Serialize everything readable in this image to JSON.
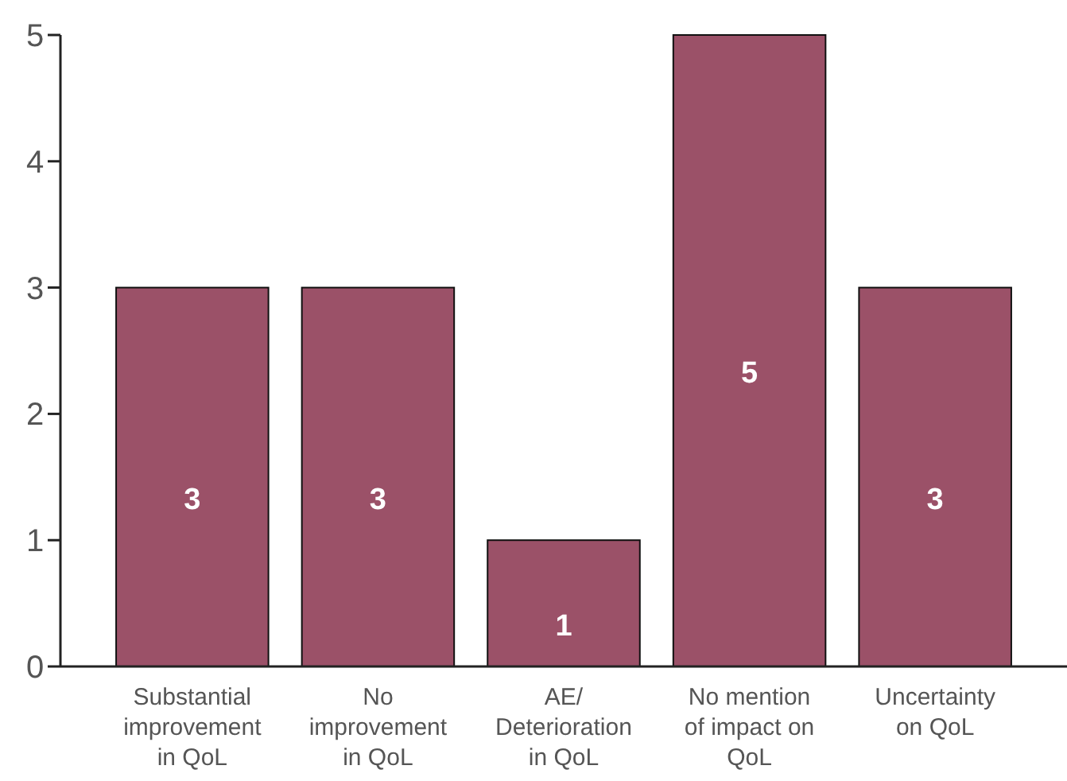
{
  "chart_data": {
    "type": "bar",
    "categories": [
      "Substantial improvement in QoL",
      "No improvement in QoL",
      "AE/ Deterioration in QoL",
      "No mention of impact on QoL",
      "Uncertainty on QoL"
    ],
    "values": [
      3,
      3,
      1,
      5,
      3
    ],
    "color": "#9b5168",
    "ylim": [
      0,
      5
    ],
    "yticks": [
      0,
      1,
      2,
      3,
      4,
      5
    ],
    "grid": false,
    "data_labels": true
  }
}
